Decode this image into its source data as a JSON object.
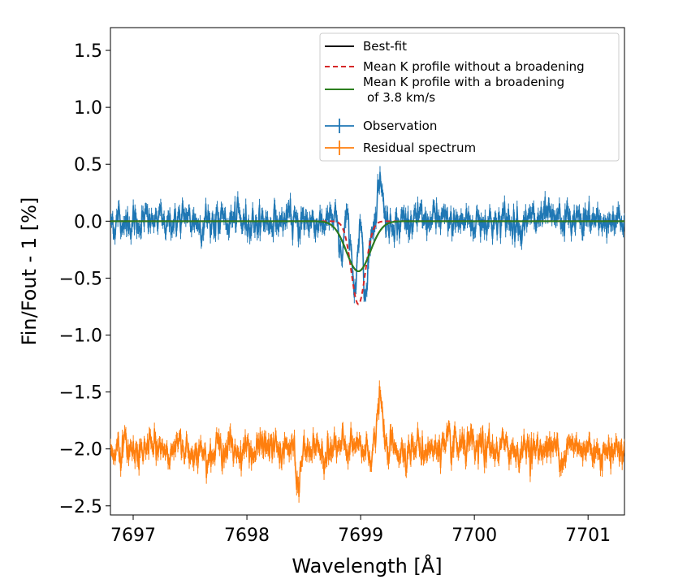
{
  "chart_data": {
    "type": "line",
    "xlabel": "Wavelength [Å]",
    "ylabel": "Fin/Fout - 1 [%]",
    "xlim": [
      7696.8,
      7701.32
    ],
    "ylim": [
      -2.58,
      1.7
    ],
    "xticks": [
      7697,
      7698,
      7699,
      7700,
      7701
    ],
    "yticks": [
      1.5,
      1.0,
      0.5,
      0.0,
      -0.5,
      -1.0,
      -1.5,
      -2.0,
      -2.5
    ],
    "xtick_labels": [
      "7697",
      "7698",
      "7699",
      "7700",
      "7701"
    ],
    "ytick_labels": [
      "1.5",
      "1.0",
      "0.5",
      "0.0",
      "−0.5",
      "−1.0",
      "−1.5",
      "−2.0",
      "−2.5"
    ],
    "legend_position": "top-right",
    "series": [
      {
        "name": "Best-fit",
        "style": "solid",
        "color": "#000000",
        "model": "gaussian",
        "center": 7698.98,
        "sigma": 0.105,
        "depth": -0.44,
        "baseline": 0.0
      },
      {
        "name": "Mean K profile without a broadening",
        "style": "dashed",
        "color": "#d62728",
        "model": "gaussian",
        "center": 7698.98,
        "sigma": 0.062,
        "depth": -0.73,
        "baseline": 0.0
      },
      {
        "name": "Mean K profile with a broadening of 3.8 km/s",
        "style": "solid",
        "color": "#2c7f1e",
        "model": "gaussian",
        "center": 7698.98,
        "sigma": 0.105,
        "depth": -0.44,
        "baseline": 0.0
      },
      {
        "name": "Observation",
        "style": "errorbar",
        "color": "#1f77b4",
        "x_range": [
          7696.8,
          7701.32
        ],
        "baseline": 0.0,
        "noise_amplitude": 0.12,
        "error": 0.05,
        "features": [
          {
            "x": 7698.95,
            "value": -0.68
          },
          {
            "x": 7699.05,
            "value": -0.62
          },
          {
            "x": 7699.17,
            "value": 0.42
          },
          {
            "x": 7698.83,
            "value": -0.3
          }
        ]
      },
      {
        "name": "Residual spectrum",
        "style": "errorbar",
        "color": "#ff7f0e",
        "x_range": [
          7696.8,
          7701.32
        ],
        "baseline": -2.0,
        "noise_amplitude": 0.12,
        "error": 0.05,
        "features": [
          {
            "x": 7699.17,
            "value": -1.52
          },
          {
            "x": 7698.45,
            "value": -2.35
          }
        ]
      }
    ],
    "legend": [
      {
        "label": "Best-fit",
        "style": "solid",
        "color": "#000000"
      },
      {
        "label": " Mean K profile without a broadening",
        "style": "dashed",
        "color": "#d62728"
      },
      {
        "label": " Mean K profile with a broadening",
        "label2": "of  3.8 km/s",
        "style": "solid",
        "color": "#2c7f1e"
      },
      {
        "label": "Observation",
        "style": "errorbar",
        "color": "#1f77b4"
      },
      {
        "label": "Residual spectrum",
        "style": "errorbar",
        "color": "#ff7f0e"
      }
    ]
  }
}
